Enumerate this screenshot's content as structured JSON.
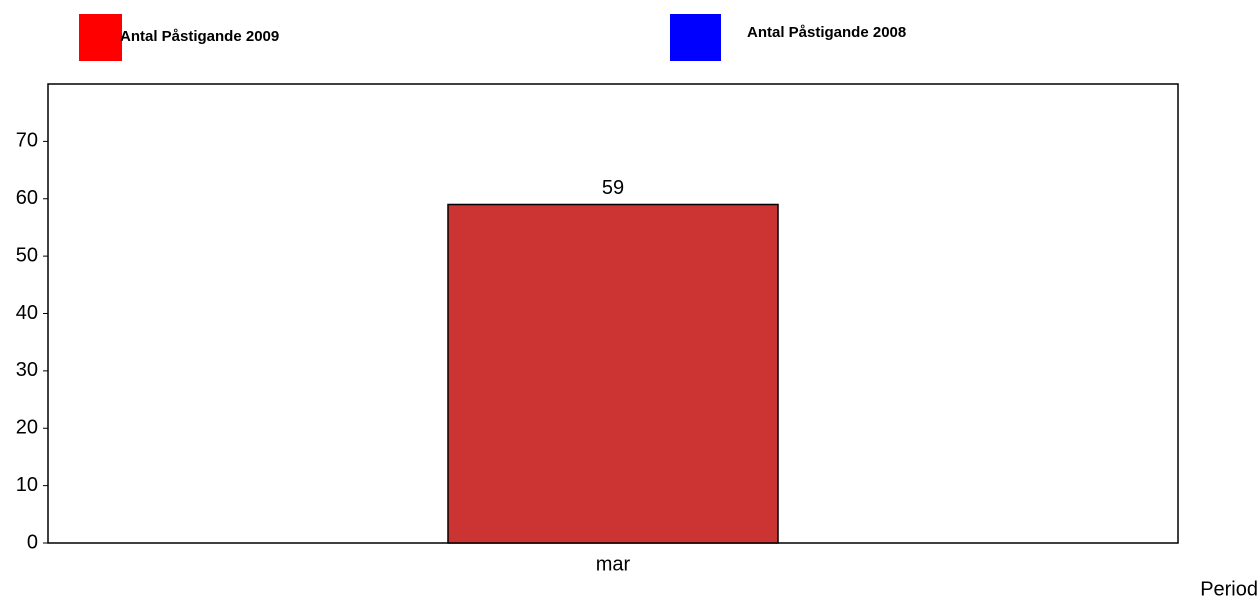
{
  "chart_data": {
    "type": "bar",
    "categories": [
      "mar"
    ],
    "series": [
      {
        "name": "Antal Påstigande 2009",
        "color": "#ff0000",
        "bar_color": "#cc3333",
        "values": [
          59
        ],
        "value_labels": [
          "59"
        ]
      },
      {
        "name": "Antal Påstigande 2008",
        "color": "#0000ff",
        "bar_color": "#0000ff",
        "values": [
          null
        ]
      }
    ],
    "x_label": "Period",
    "ylim": [
      0,
      80
    ],
    "yticks": [
      0,
      10,
      20,
      30,
      40,
      50,
      60,
      70
    ]
  }
}
